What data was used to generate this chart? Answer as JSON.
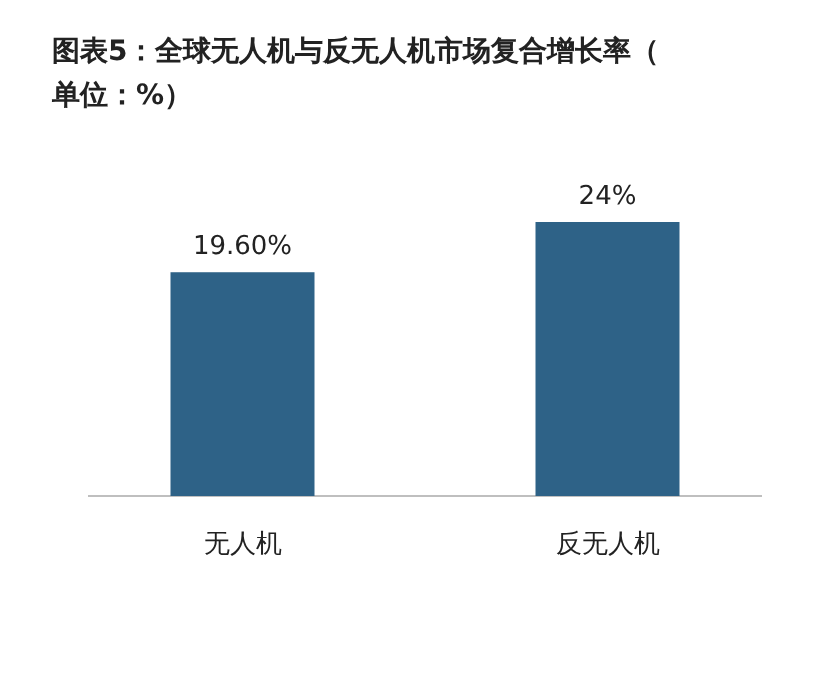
{
  "chart_data": {
    "type": "bar",
    "title": "图表5：全球无人机与反无人机市场复合增长率（单位：%）",
    "categories": [
      "无人机",
      "反无人机"
    ],
    "values": [
      19.6,
      24
    ],
    "value_labels": [
      "19.60%",
      "24%"
    ],
    "color": "#2e6287"
  }
}
